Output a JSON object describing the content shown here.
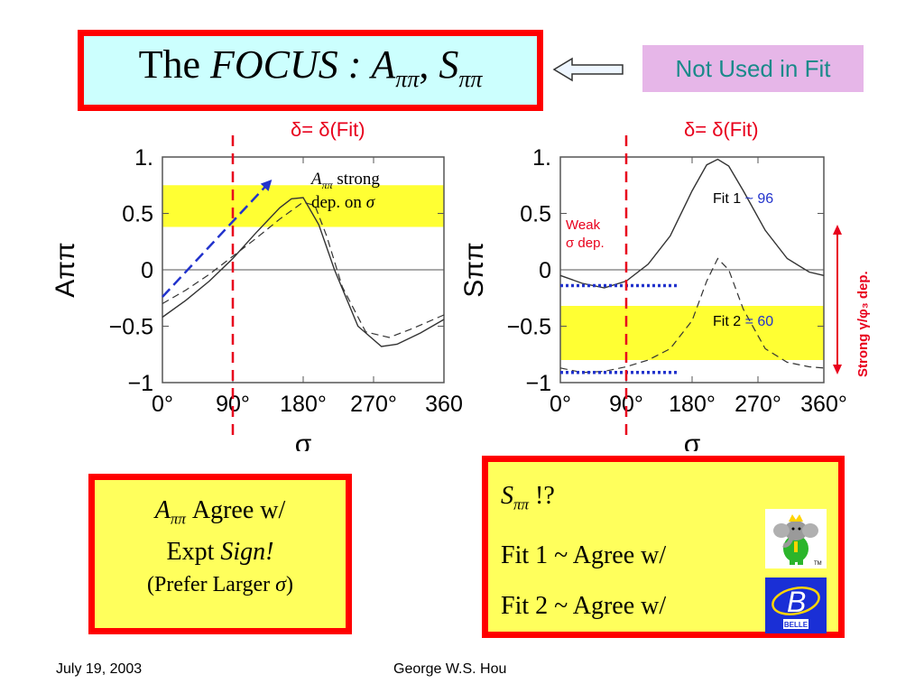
{
  "title": {
    "prefix": "The",
    "focus": "FOCUS",
    "colon": ":",
    "a": "A",
    "comma": ",",
    "s": "S",
    "sub": "ππ"
  },
  "not_used_label": "Not Used in Fit",
  "delta_label": "δ= δ(Fit)",
  "left_panel": {
    "annotation_a": "A",
    "annotation_sub": "ππ",
    "annotation_text1": "strong",
    "annotation_text2": "dep. on",
    "annotation_sigma": "σ"
  },
  "right_panel": {
    "weak_line1": "Weak",
    "weak_line2": "σ dep.",
    "fit1_label": "Fit 1",
    "fit1_value": "~ 96",
    "fit2_label": "Fit 2",
    "fit2_value": "= 60",
    "strong_label": "Strong γ/φ₃ dep."
  },
  "box_left": {
    "line1_a": "A",
    "line1_sub": "ππ",
    "line1_rest": "Agree  w/",
    "line2_a": "Expt",
    "line2_b": "Sign!",
    "line3_a": "(Prefer Larger",
    "line3_sigma": "σ",
    "line3_b": ")"
  },
  "box_right": {
    "line1_s": "S",
    "line1_sub": "ππ",
    "line1_rest": "!?",
    "line2": "Fit 1 ~ Agree  w/",
    "line3": "Fit 2 ~ Agree  w/",
    "logo_belle_text": "BELLE",
    "logo_tm": "TM"
  },
  "footer": {
    "date": "July 19, 2003",
    "author": "George W.S. Hou"
  },
  "colors": {
    "band": "#ffff33",
    "red": "#e8001c",
    "blue_dash": "#2233cc"
  },
  "chart_data": [
    {
      "type": "line",
      "ylabel": "Aππ",
      "xlabel": "σ",
      "xlim": [
        0,
        360
      ],
      "ylim": [
        -1,
        1
      ],
      "x_ticks": [
        "0°",
        "90°",
        "180°",
        "270°",
        "360"
      ],
      "y_ticks": [
        "1.",
        "0.5",
        "0",
        "−0.5",
        "−1"
      ],
      "band": [
        0.38,
        0.75
      ],
      "vline_x": 90,
      "series": [
        {
          "style": "solid",
          "x": [
            0,
            30,
            60,
            90,
            120,
            150,
            165,
            180,
            200,
            220,
            250,
            280,
            300,
            330,
            360
          ],
          "y": [
            -0.42,
            -0.27,
            -0.1,
            0.1,
            0.33,
            0.55,
            0.63,
            0.64,
            0.4,
            0.0,
            -0.5,
            -0.68,
            -0.66,
            -0.56,
            -0.44
          ]
        },
        {
          "style": "dashed",
          "x": [
            0,
            30,
            60,
            90,
            120,
            150,
            180,
            195,
            210,
            230,
            260,
            290,
            320,
            360
          ],
          "y": [
            -0.3,
            -0.18,
            -0.04,
            0.12,
            0.28,
            0.45,
            0.6,
            0.57,
            0.3,
            -0.15,
            -0.55,
            -0.6,
            -0.52,
            -0.4
          ]
        },
        {
          "style": "arrow",
          "x": [
            0,
            140
          ],
          "y": [
            -0.24,
            0.8
          ]
        }
      ]
    },
    {
      "type": "line",
      "ylabel": "Sππ",
      "xlabel": "σ",
      "xlim": [
        0,
        360
      ],
      "ylim": [
        -1,
        1
      ],
      "x_ticks": [
        "0°",
        "90°",
        "180°",
        "270°",
        "360°"
      ],
      "y_ticks": [
        "1.",
        "0.5",
        "0",
        "−0.5",
        "−1"
      ],
      "band": [
        -0.8,
        -0.32
      ],
      "vline_x": 90,
      "series": [
        {
          "style": "solid",
          "x": [
            0,
            30,
            60,
            90,
            120,
            150,
            180,
            200,
            215,
            230,
            250,
            280,
            310,
            340,
            360
          ],
          "y": [
            -0.05,
            -0.12,
            -0.16,
            -0.1,
            0.05,
            0.3,
            0.7,
            0.93,
            0.98,
            0.92,
            0.7,
            0.35,
            0.1,
            -0.02,
            -0.05
          ]
        },
        {
          "style": "dashed",
          "x": [
            0,
            30,
            60,
            90,
            120,
            150,
            180,
            200,
            215,
            230,
            250,
            280,
            310,
            340,
            360
          ],
          "y": [
            -0.87,
            -0.91,
            -0.9,
            -0.86,
            -0.8,
            -0.7,
            -0.45,
            -0.1,
            0.1,
            0.0,
            -0.35,
            -0.7,
            -0.82,
            -0.86,
            -0.87
          ]
        },
        {
          "style": "dotted",
          "x": [
            0,
            160
          ],
          "y": [
            -0.14,
            -0.14
          ]
        },
        {
          "style": "dotted",
          "x": [
            0,
            160
          ],
          "y": [
            -0.91,
            -0.91
          ]
        }
      ]
    }
  ]
}
